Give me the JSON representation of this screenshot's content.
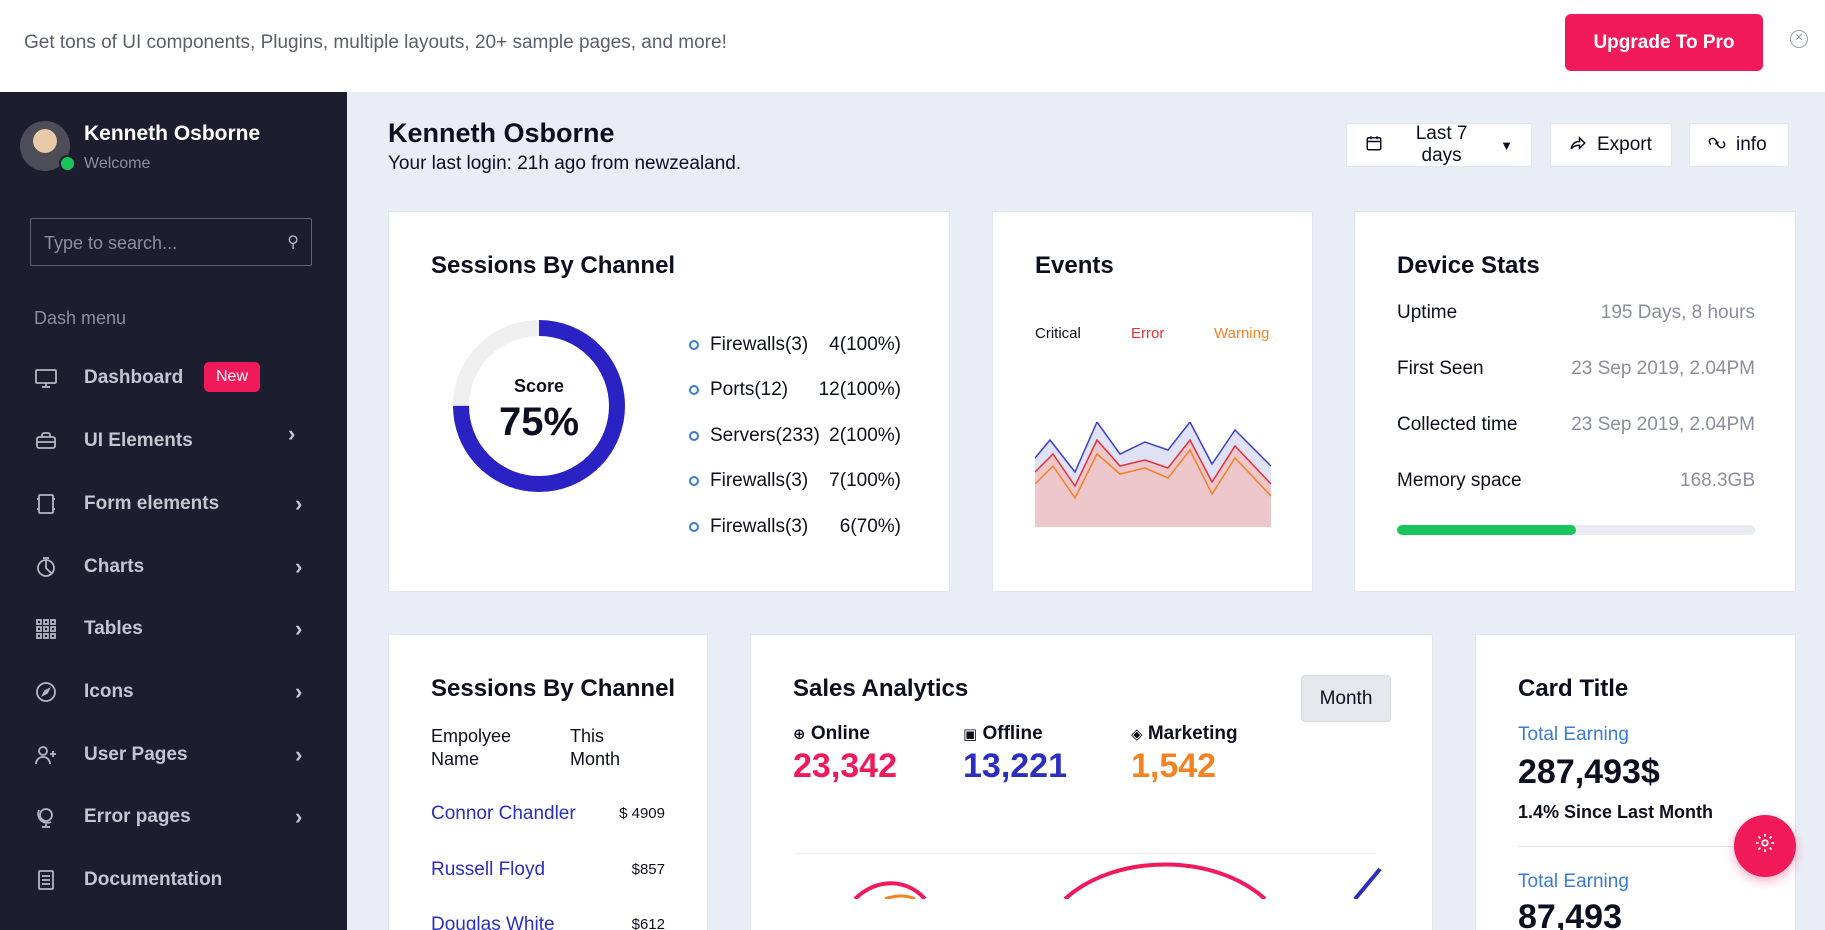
{
  "banner": {
    "text": "Get tons of UI components, Plugins, multiple layouts, 20+ sample pages, and more!",
    "upgrade_label": "Upgrade To Pro"
  },
  "sidebar": {
    "user_name": "Kenneth Osborne",
    "user_status": "Welcome",
    "search_placeholder": "Type to search...",
    "menu_title": "Dash menu",
    "items": [
      {
        "label": "Dashboard",
        "icon": "monitor-icon",
        "badge": "New"
      },
      {
        "label": "UI Elements",
        "icon": "briefcase-icon"
      },
      {
        "label": "Form elements",
        "icon": "form-icon"
      },
      {
        "label": "Charts",
        "icon": "pie-chart-icon"
      },
      {
        "label": "Tables",
        "icon": "grid-icon"
      },
      {
        "label": "Icons",
        "icon": "compass-icon"
      },
      {
        "label": "User Pages",
        "icon": "user-plus-icon"
      },
      {
        "label": "Error pages",
        "icon": "globe-icon"
      },
      {
        "label": "Documentation",
        "icon": "document-icon"
      }
    ]
  },
  "header": {
    "title": "Kenneth Osborne",
    "subtitle": "Your last login: 21h ago from newzealand.",
    "date_range_label": "Last 7 days",
    "export_label": "Export",
    "info_label": "info"
  },
  "sessions_card": {
    "title": "Sessions By Channel",
    "score_label": "Score",
    "score_value": "75%",
    "score_fraction": 0.75,
    "legend": [
      {
        "name": "Firewalls(3)",
        "value": "4(100%)"
      },
      {
        "name": "Ports(12)",
        "value": "12(100%)"
      },
      {
        "name": "Servers(233)",
        "value": "2(100%)"
      },
      {
        "name": "Firewalls(3)",
        "value": "7(100%)"
      },
      {
        "name": "Firewalls(3)",
        "value": "6(70%)"
      }
    ]
  },
  "events_card": {
    "title": "Events",
    "legend": [
      {
        "name": "Critical",
        "color": "#0c0f1f"
      },
      {
        "name": "Error",
        "color": "#e8303a"
      },
      {
        "name": "Warning",
        "color": "#f58220"
      }
    ]
  },
  "device_card": {
    "title": "Device Stats",
    "stats": [
      {
        "label": "Uptime",
        "value": "195 Days, 8 hours"
      },
      {
        "label": "First Seen",
        "value": "23 Sep 2019, 2.04PM"
      },
      {
        "label": "Collected time",
        "value": "23 Sep 2019, 2.04PM"
      },
      {
        "label": "Memory space",
        "value": "168.3GB"
      }
    ],
    "memory_fraction": 0.5
  },
  "sessions_table": {
    "title": "Sessions By Channel",
    "col_name": "Empolyee Name",
    "col_month": "This Month",
    "rows": [
      {
        "name": "Connor Chandler",
        "value": "$ 4909"
      },
      {
        "name": "Russell Floyd",
        "value": "$857"
      },
      {
        "name": "Douglas White",
        "value": "$612"
      }
    ]
  },
  "sales_card": {
    "title": "Sales Analytics",
    "period_label": "Month",
    "metrics": [
      {
        "label": "Online",
        "value": "23,342",
        "color": "#f0195a",
        "icon": "globe-icon"
      },
      {
        "label": "Offline",
        "value": "13,221",
        "color": "#2b2fbf",
        "icon": "store-icon"
      },
      {
        "label": "Marketing",
        "value": "1,542",
        "color": "#f58220",
        "icon": "tag-icon"
      }
    ]
  },
  "earning_card": {
    "title": "Card Title",
    "items": [
      {
        "label": "Total Earning",
        "value": "287,493$",
        "sub": "1.4% Since Last Month"
      },
      {
        "label": "Total Earning",
        "value": "87,493"
      }
    ]
  },
  "colors": {
    "accent": "#f0195a",
    "primary": "#2b2fbf",
    "success": "#19c45a",
    "sidebar_bg": "#1c1e2f"
  }
}
